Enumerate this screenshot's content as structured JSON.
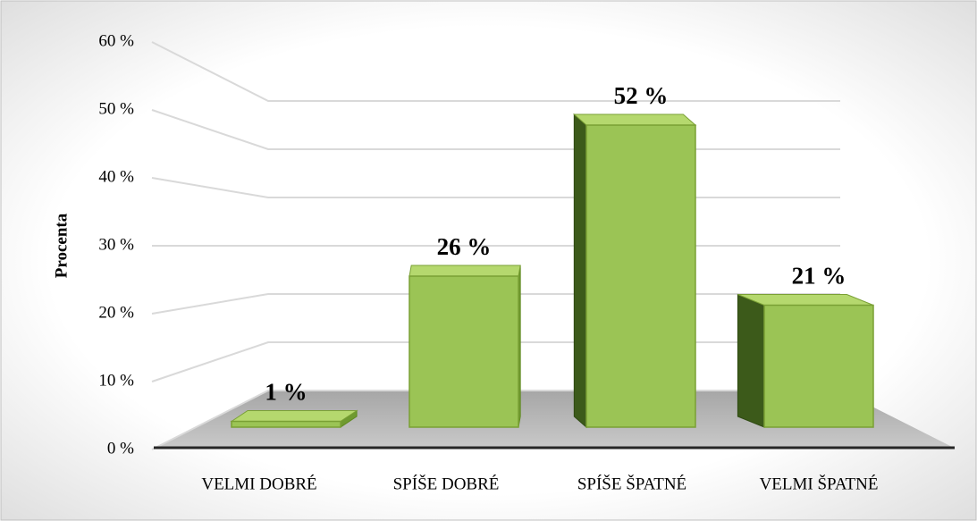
{
  "chart_data": {
    "type": "bar",
    "y_label": "Procenta",
    "categories": [
      "VELMI DOBRÉ",
      "SPÍŠE DOBRÉ",
      "SPÍŠE ŠPATNÉ",
      "VELMI ŠPATNÉ"
    ],
    "values": [
      1,
      26,
      52,
      21
    ],
    "value_labels": [
      "1 %",
      "26 %",
      "52 %",
      "21 %"
    ],
    "color": "#9bc455",
    "ylim": [
      0,
      60
    ],
    "yticks": [
      {
        "value": 0,
        "label": "0 %"
      },
      {
        "value": 10,
        "label": "10 %"
      },
      {
        "value": 20,
        "label": "20 %"
      },
      {
        "value": 30,
        "label": "30 %"
      },
      {
        "value": 40,
        "label": "40 %"
      },
      {
        "value": 50,
        "label": "50 %"
      },
      {
        "value": 60,
        "label": "60 %"
      }
    ],
    "grid": true
  }
}
